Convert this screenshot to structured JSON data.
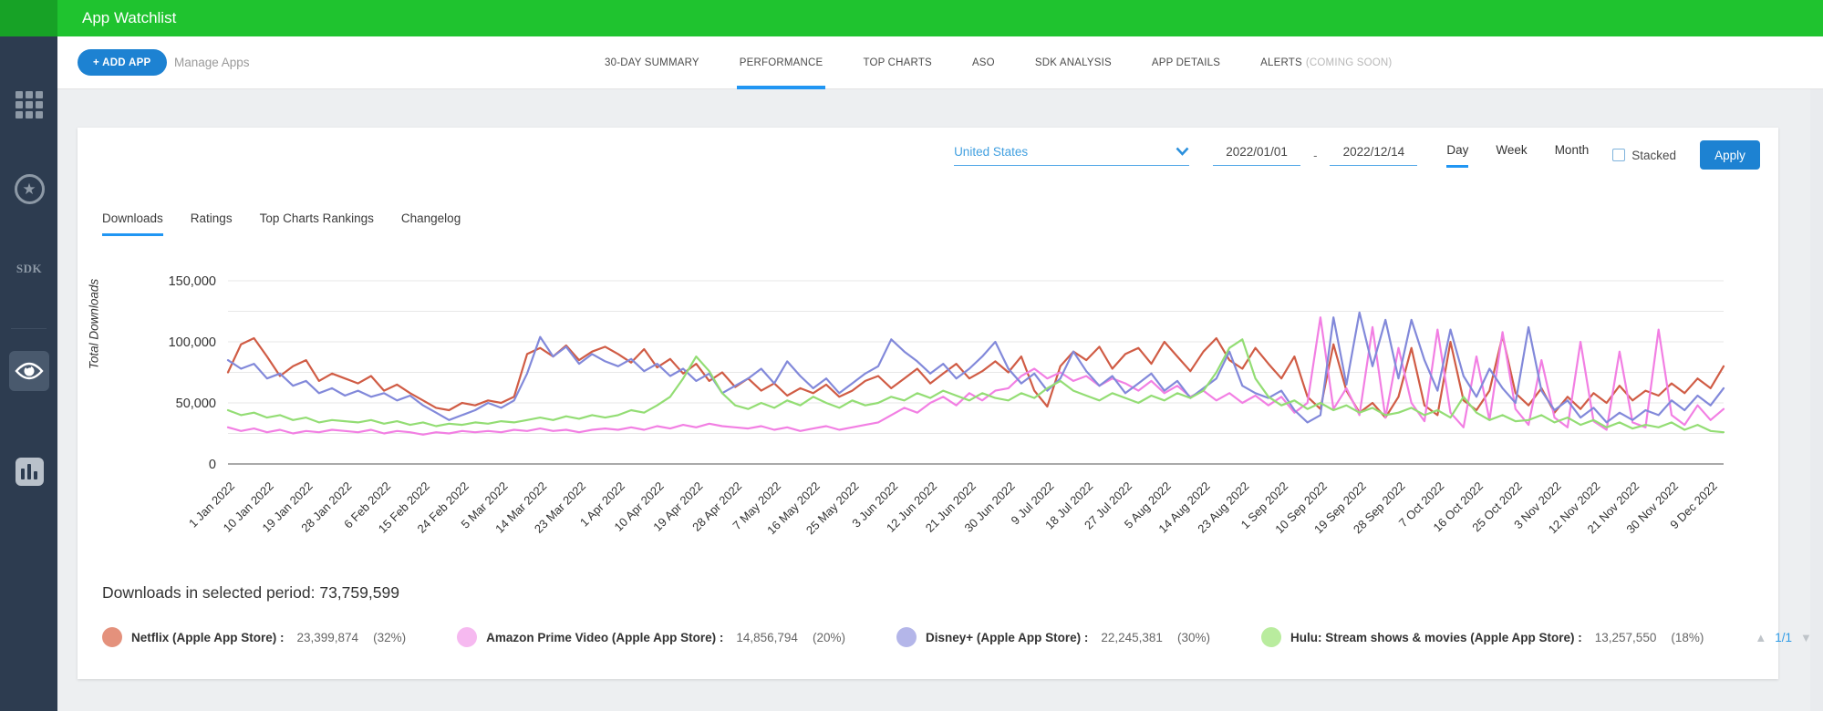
{
  "header": {
    "title": "App Watchlist"
  },
  "sidebar": {
    "sdk_label": "SDK",
    "items": [
      "apps-grid",
      "top-apps-star",
      "sdk",
      "watchlist-eye",
      "charts"
    ]
  },
  "toolbar": {
    "add_app_label": "+ ADD APP",
    "manage_apps_label": "Manage Apps",
    "tabs": [
      {
        "label": "30-DAY SUMMARY",
        "active": false
      },
      {
        "label": "PERFORMANCE",
        "active": true
      },
      {
        "label": "TOP CHARTS",
        "active": false
      },
      {
        "label": "ASO",
        "active": false
      },
      {
        "label": "SDK ANALYSIS",
        "active": false
      },
      {
        "label": "APP DETAILS",
        "active": false
      },
      {
        "label": "ALERTS",
        "suffix": "(COMING SOON)",
        "active": false
      }
    ]
  },
  "filters": {
    "country": "United States",
    "date_from": "2022/01/01",
    "date_separator": "-",
    "date_to": "2022/12/14",
    "granularity_options": [
      {
        "label": "Day",
        "active": true
      },
      {
        "label": "Week",
        "active": false
      },
      {
        "label": "Month",
        "active": false
      }
    ],
    "stacked_label": "Stacked",
    "apply_label": "Apply"
  },
  "subtabs": [
    {
      "label": "Downloads",
      "active": true
    },
    {
      "label": "Ratings",
      "active": false
    },
    {
      "label": "Top Charts Rankings",
      "active": false
    },
    {
      "label": "Changelog",
      "active": false
    }
  ],
  "summary": {
    "text": "Downloads in selected period: 73,759,599"
  },
  "legend": {
    "items": [
      {
        "name": "Netflix (Apple App Store) :",
        "value": "23,399,874",
        "pct": "(32%)",
        "color": "#e4917c"
      },
      {
        "name": "Amazon Prime Video (Apple App Store) :",
        "value": "14,856,794",
        "pct": "(20%)",
        "color": "#f6b9f0"
      },
      {
        "name": "Disney+ (Apple App Store) :",
        "value": "22,245,381",
        "pct": "(30%)",
        "color": "#b4b6e9"
      },
      {
        "name": "Hulu: Stream shows & movies (Apple App Store) :",
        "value": "13,257,550",
        "pct": "(18%)",
        "color": "#b9ec9e"
      }
    ],
    "pagination": {
      "up": "▲",
      "page": "1/1",
      "down": "▼"
    }
  },
  "chart_data": {
    "type": "line",
    "title": "",
    "xlabel": "",
    "ylabel": "Total Downloads",
    "ylim": [
      0,
      150000
    ],
    "grid_step": 25000,
    "y_tick_values": [
      0,
      50000,
      100000,
      150000
    ],
    "values_unit_multiplier": 1000,
    "x_tick_labels": [
      "1 Jan 2022",
      "10 Jan 2022",
      "19 Jan 2022",
      "28 Jan 2022",
      "6 Feb 2022",
      "15 Feb 2022",
      "24 Feb 2022",
      "5 Mar 2022",
      "14 Mar 2022",
      "23 Mar 2022",
      "1 Apr 2022",
      "10 Apr 2022",
      "19 Apr 2022",
      "28 Apr 2022",
      "7 May 2022",
      "16 May 2022",
      "25 May 2022",
      "3 Jun 2022",
      "12 Jun 2022",
      "21 Jun 2022",
      "30 Jun 2022",
      "9 Jul 2022",
      "18 Jul 2022",
      "27 Jul 2022",
      "5 Aug 2022",
      "14 Aug 2022",
      "23 Aug 2022",
      "1 Sep 2022",
      "10 Sep 2022",
      "19 Sep 2022",
      "28 Sep 2022",
      "7 Oct 2022",
      "16 Oct 2022",
      "25 Oct 2022",
      "3 Nov 2022",
      "12 Nov 2022",
      "21 Nov 2022",
      "30 Nov 2022",
      "9 Dec 2022"
    ],
    "x_ticks_every_points": 3,
    "series": [
      {
        "name": "Netflix (Apple App Store)",
        "color": "#d05c45",
        "values": [
          75,
          98,
          103,
          88,
          72,
          80,
          85,
          68,
          74,
          70,
          66,
          72,
          60,
          65,
          58,
          52,
          46,
          44,
          50,
          48,
          52,
          50,
          55,
          90,
          95,
          88,
          97,
          85,
          92,
          96,
          90,
          83,
          94,
          79,
          86,
          74,
          82,
          68,
          75,
          63,
          70,
          60,
          66,
          56,
          62,
          58,
          65,
          55,
          60,
          68,
          72,
          62,
          70,
          78,
          66,
          74,
          82,
          70,
          76,
          84,
          75,
          88,
          60,
          47,
          80,
          92,
          85,
          96,
          78,
          90,
          95,
          82,
          100,
          88,
          76,
          92,
          103,
          85,
          78,
          95,
          82,
          70,
          88,
          55,
          45,
          98,
          60,
          42,
          50,
          38,
          55,
          95,
          48,
          40,
          100,
          52,
          44,
          60,
          105,
          58,
          48,
          62,
          42,
          55,
          45,
          58,
          50,
          64,
          52,
          60,
          56,
          66,
          58,
          70,
          62,
          80
        ]
      },
      {
        "name": "Amazon Prime Video (Apple App Store)",
        "color": "#f27fe3",
        "values": [
          30,
          27,
          29,
          26,
          28,
          25,
          27,
          26,
          28,
          27,
          26,
          28,
          25,
          27,
          26,
          24,
          26,
          25,
          27,
          26,
          27,
          26,
          28,
          27,
          29,
          27,
          28,
          26,
          28,
          29,
          28,
          30,
          28,
          31,
          29,
          32,
          30,
          33,
          31,
          30,
          29,
          31,
          28,
          30,
          27,
          29,
          31,
          28,
          30,
          32,
          34,
          40,
          46,
          42,
          50,
          55,
          48,
          58,
          52,
          60,
          62,
          72,
          78,
          70,
          75,
          68,
          72,
          64,
          70,
          66,
          60,
          68,
          58,
          64,
          55,
          60,
          52,
          58,
          50,
          56,
          48,
          55,
          42,
          50,
          120,
          45,
          62,
          40,
          112,
          38,
          95,
          50,
          35,
          110,
          42,
          30,
          88,
          36,
          108,
          45,
          32,
          85,
          38,
          30,
          100,
          35,
          28,
          92,
          34,
          30,
          110,
          40,
          32,
          48,
          36,
          45
        ]
      },
      {
        "name": "Disney+ (Apple App Store)",
        "color": "#8289da",
        "values": [
          85,
          78,
          82,
          70,
          74,
          64,
          68,
          58,
          62,
          56,
          60,
          55,
          58,
          52,
          56,
          48,
          42,
          36,
          40,
          44,
          50,
          46,
          52,
          74,
          104,
          88,
          96,
          82,
          90,
          84,
          80,
          86,
          76,
          82,
          72,
          78,
          68,
          74,
          58,
          64,
          70,
          78,
          66,
          84,
          72,
          62,
          70,
          58,
          66,
          74,
          80,
          102,
          92,
          84,
          74,
          82,
          70,
          78,
          88,
          100,
          78,
          66,
          74,
          60,
          70,
          92,
          76,
          64,
          72,
          58,
          66,
          74,
          60,
          68,
          54,
          62,
          70,
          92,
          64,
          58,
          54,
          60,
          44,
          34,
          40,
          120,
          65,
          124,
          80,
          118,
          70,
          118,
          85,
          60,
          110,
          72,
          55,
          78,
          62,
          50,
          112,
          60,
          44,
          52,
          38,
          46,
          34,
          42,
          36,
          44,
          40,
          52,
          44,
          56,
          48,
          62
        ]
      },
      {
        "name": "Hulu: Stream shows & movies (Apple App Store)",
        "color": "#93dd74",
        "values": [
          44,
          40,
          42,
          38,
          40,
          36,
          38,
          34,
          36,
          35,
          34,
          36,
          33,
          35,
          32,
          34,
          31,
          33,
          32,
          34,
          33,
          35,
          34,
          36,
          38,
          36,
          39,
          37,
          40,
          38,
          40,
          44,
          42,
          48,
          55,
          70,
          88,
          76,
          58,
          48,
          45,
          50,
          46,
          52,
          48,
          55,
          50,
          46,
          52,
          48,
          50,
          55,
          52,
          58,
          54,
          60,
          56,
          52,
          58,
          54,
          52,
          58,
          54,
          62,
          68,
          60,
          56,
          52,
          58,
          54,
          50,
          56,
          52,
          58,
          54,
          60,
          75,
          95,
          102,
          70,
          55,
          48,
          52,
          45,
          50,
          44,
          48,
          42,
          46,
          40,
          42,
          46,
          40,
          44,
          38,
          55,
          42,
          36,
          40,
          35,
          36,
          40,
          34,
          38,
          32,
          36,
          30,
          34,
          29,
          32,
          30,
          34,
          28,
          32,
          27,
          26
        ]
      }
    ],
    "legend_position": "bottom"
  }
}
